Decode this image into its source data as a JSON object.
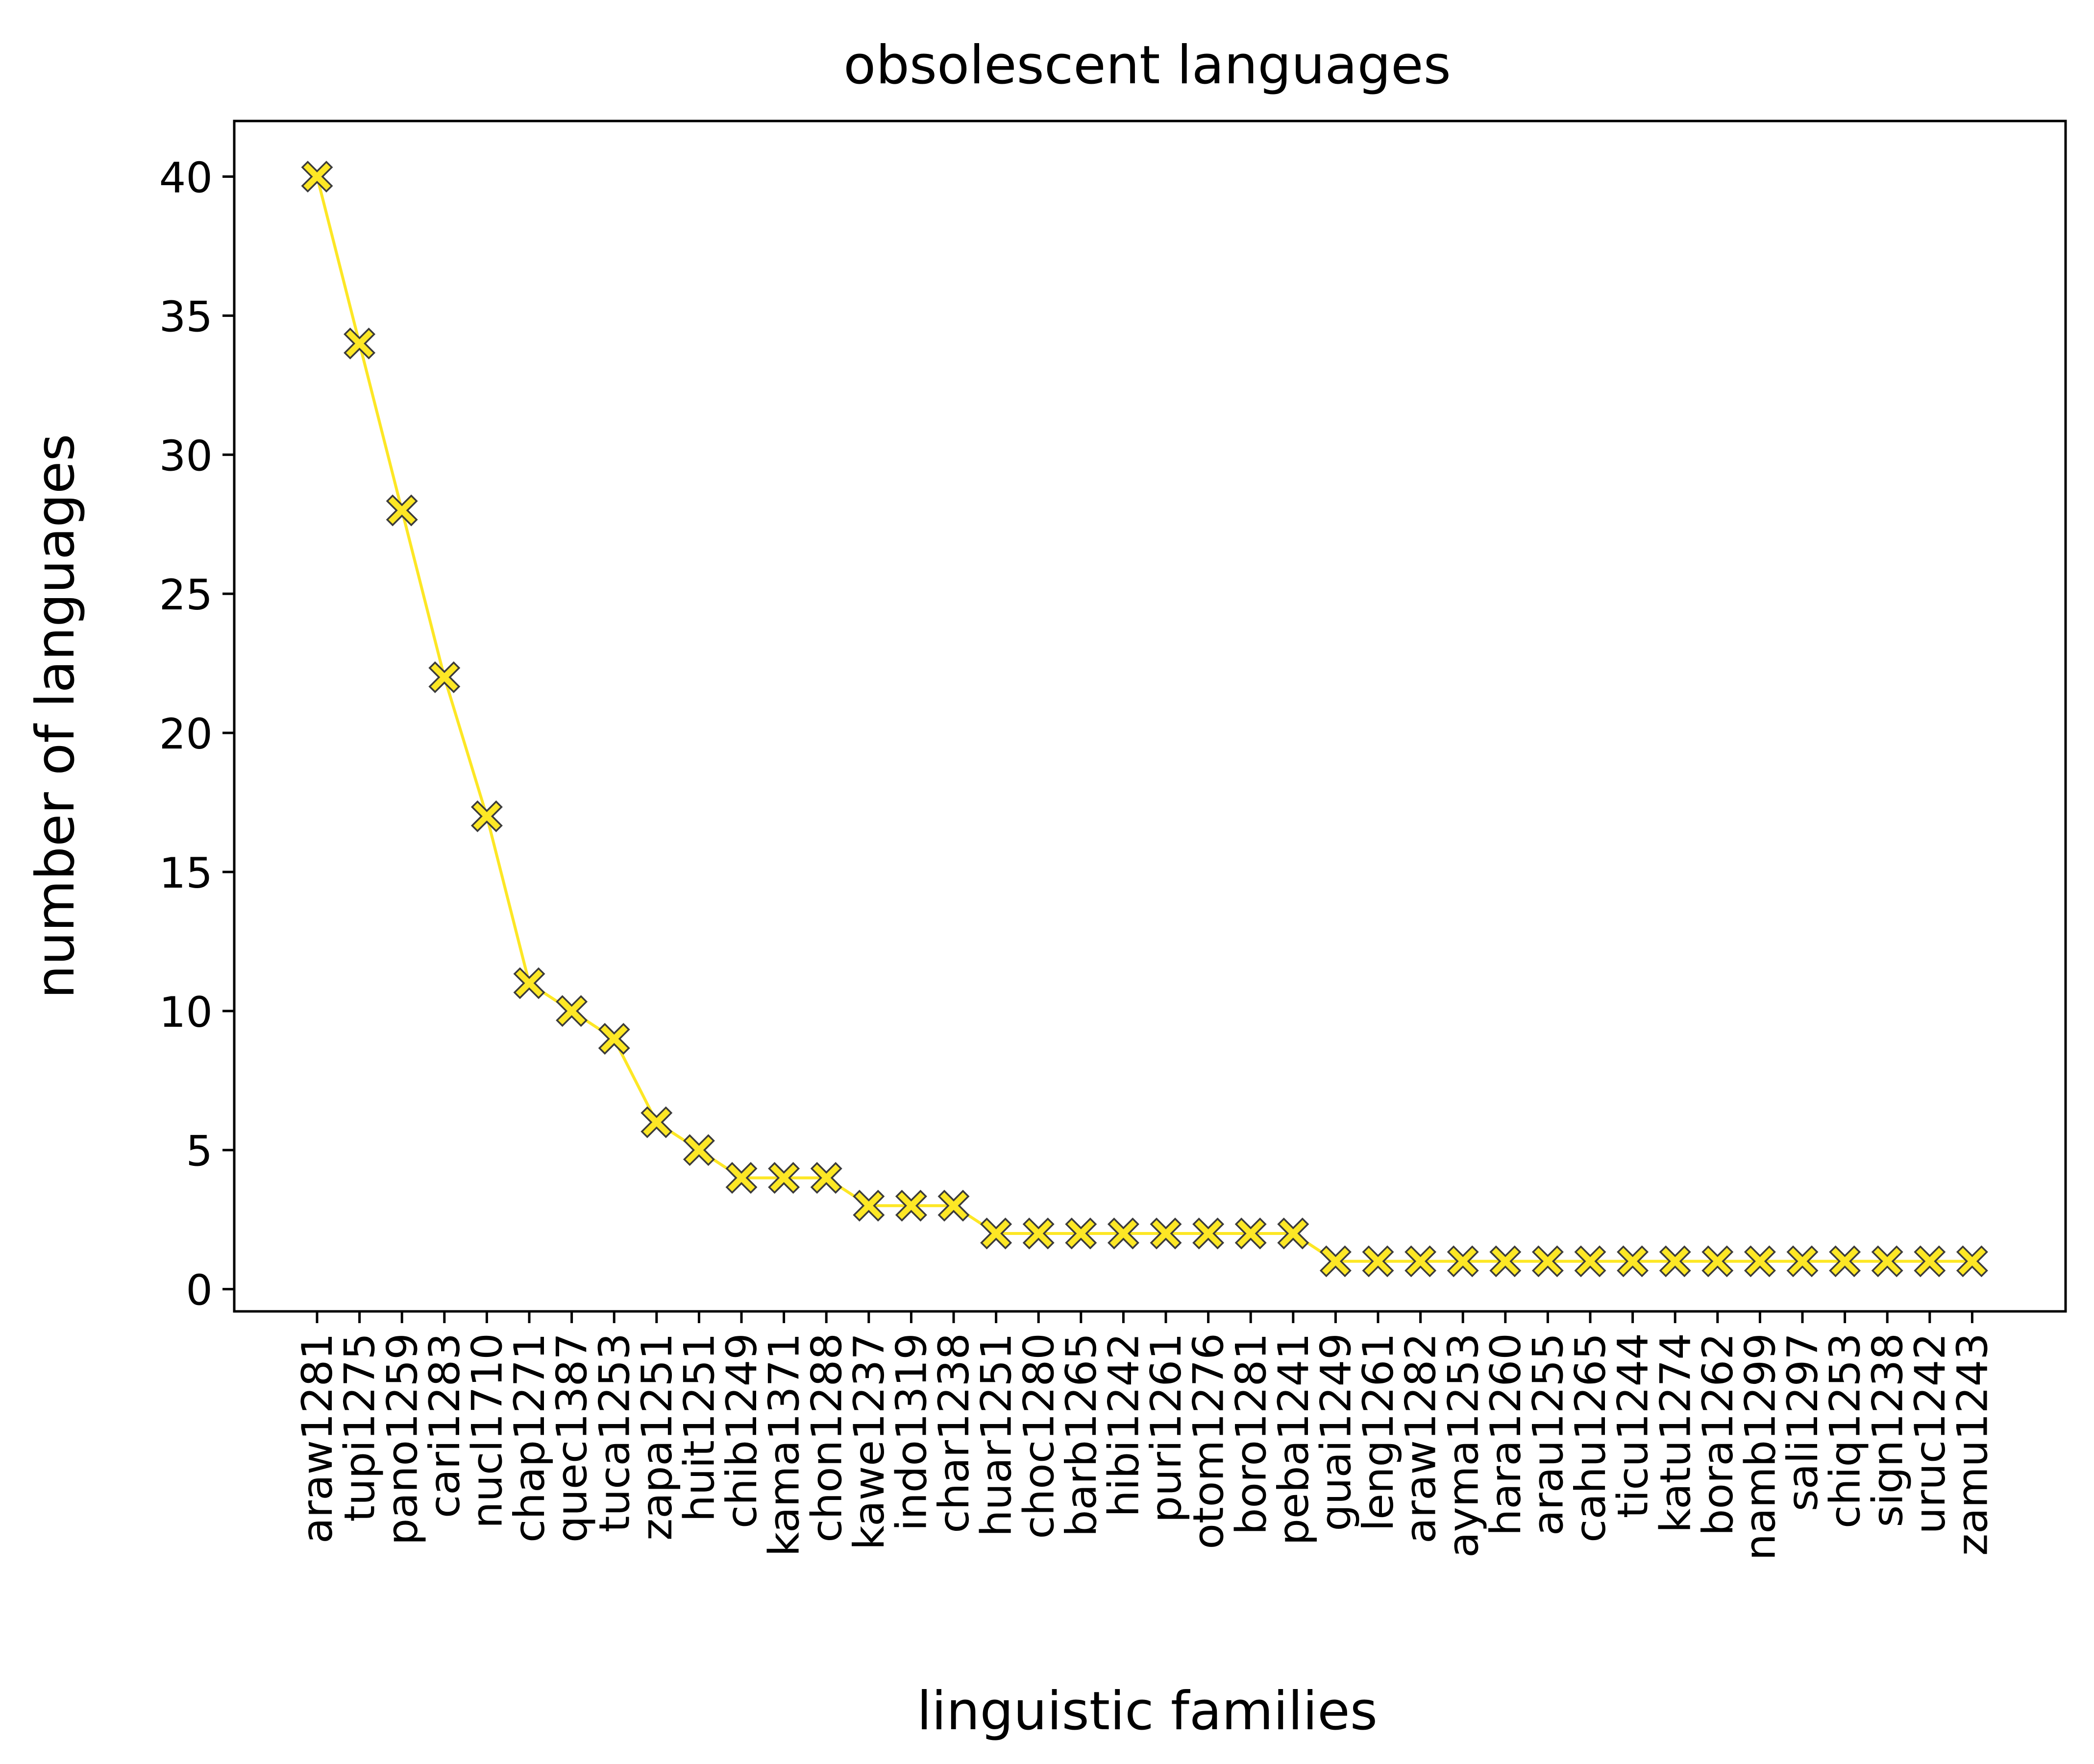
{
  "chart_data": {
    "type": "line",
    "title": "obsolescent languages",
    "xlabel": "linguistic families",
    "ylabel": "number of languages",
    "categories": [
      "araw1281",
      "tupi1275",
      "pano1259",
      "cari1283",
      "nucl1710",
      "chap1271",
      "quec1387",
      "tuca1253",
      "zapa1251",
      "huit1251",
      "chib1249",
      "kama1371",
      "chon1288",
      "kawe1237",
      "indo1319",
      "char1238",
      "huar1251",
      "choc1280",
      "barb1265",
      "hibi1242",
      "puri1261",
      "otom1276",
      "boro1281",
      "peba1241",
      "guai1249",
      "leng1261",
      "araw1282",
      "ayma1253",
      "hara1260",
      "arau1255",
      "cahu1265",
      "ticu1244",
      "katu1274",
      "bora1262",
      "namb1299",
      "sali1297",
      "chiq1253",
      "sign1238",
      "uruc1242",
      "zamu1243"
    ],
    "series": [
      {
        "values": [
          40,
          34,
          28,
          22,
          17,
          11,
          10,
          9,
          6,
          5,
          4,
          4,
          4,
          3,
          3,
          3,
          2,
          2,
          2,
          2,
          2,
          2,
          2,
          2,
          1,
          1,
          1,
          1,
          1,
          1,
          1,
          1,
          1,
          1,
          1,
          1,
          1,
          1,
          1,
          1
        ],
        "color": "#fde725",
        "marker": "X"
      }
    ],
    "ylim": [
      -0.8,
      42
    ],
    "yticks": [
      0,
      5,
      10,
      15,
      20,
      25,
      30,
      35,
      40
    ],
    "grid": false,
    "legend": "none",
    "marker_edge_color": "#3b3b3b"
  }
}
